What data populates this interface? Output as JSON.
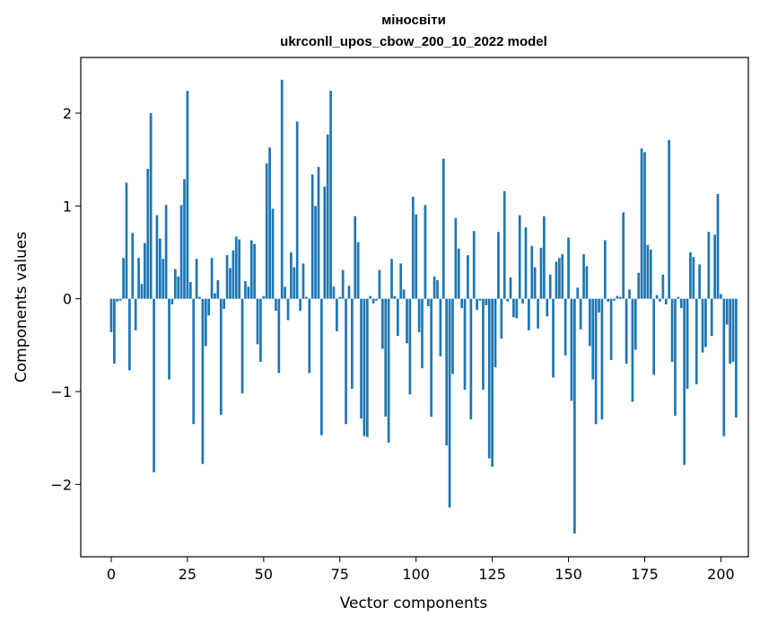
{
  "chart_data": {
    "type": "bar",
    "title": "міносвіти",
    "subtitle": "ukrconll_upos_cbow_200_10_2022 model",
    "xlabel": "Vector components",
    "ylabel": "Components values",
    "xlim": [
      -10,
      209
    ],
    "ylim": [
      -2.78,
      2.6
    ],
    "xticks": [
      0,
      25,
      50,
      75,
      100,
      125,
      150,
      175,
      200
    ],
    "xtick_labels": [
      "0",
      "25",
      "50",
      "75",
      "100",
      "125",
      "150",
      "175",
      "200"
    ],
    "yticks": [
      -2,
      -1,
      0,
      1,
      2
    ],
    "ytick_labels": [
      "−2",
      "−1",
      "0",
      "1",
      "2"
    ],
    "grid": false,
    "bar_color": "#1f77b4",
    "values": [
      -0.36,
      -0.7,
      -0.03,
      -0.02,
      0.44,
      1.25,
      -0.77,
      0.71,
      -0.34,
      0.44,
      0.16,
      0.6,
      1.4,
      2.0,
      -1.87,
      0.9,
      0.65,
      0.43,
      1.01,
      -0.87,
      -0.06,
      0.32,
      0.24,
      1.01,
      1.29,
      2.24,
      0.18,
      -1.35,
      0.43,
      0.02,
      -1.78,
      -0.51,
      -0.18,
      0.44,
      0.06,
      0.2,
      -1.25,
      -0.11,
      0.47,
      0.33,
      0.52,
      0.67,
      0.64,
      -1.02,
      0.19,
      0.13,
      0.63,
      0.59,
      -0.49,
      -0.68,
      0.03,
      1.46,
      1.63,
      0.97,
      -0.13,
      -0.8,
      2.36,
      0.13,
      -0.23,
      0.5,
      0.34,
      1.91,
      -0.13,
      0.38,
      0.02,
      -0.8,
      1.34,
      1.0,
      1.42,
      -1.47,
      1.21,
      1.77,
      2.24,
      0.13,
      -0.35,
      0.02,
      0.31,
      -1.35,
      0.14,
      -0.97,
      0.89,
      0.61,
      -1.29,
      -1.48,
      -1.49,
      0.03,
      -0.05,
      -0.02,
      0.31,
      -0.54,
      -1.27,
      -1.55,
      0.43,
      0.03,
      -0.4,
      0.38,
      0.1,
      -0.48,
      -1.03,
      1.1,
      0.91,
      -0.36,
      -0.75,
      1.01,
      -0.08,
      -1.27,
      0.24,
      0.2,
      -0.62,
      1.51,
      -1.58,
      -2.25,
      -0.81,
      0.87,
      0.54,
      -0.1,
      -0.98,
      0.47,
      -1.3,
      0.73,
      -0.12,
      -0.02,
      -0.98,
      -0.07,
      -1.72,
      -1.81,
      -0.74,
      0.72,
      -0.43,
      1.16,
      -0.03,
      0.23,
      -0.2,
      -0.21,
      0.9,
      -0.05,
      0.77,
      -0.34,
      0.57,
      0.34,
      -0.32,
      0.55,
      0.89,
      -0.19,
      0.26,
      -0.85,
      0.4,
      0.44,
      0.48,
      -0.61,
      0.66,
      -1.1,
      -2.53,
      0.12,
      -0.33,
      0.48,
      0.35,
      -0.51,
      -0.87,
      -1.35,
      -0.15,
      -1.3,
      0.63,
      -0.03,
      -0.66,
      -0.02,
      0.03,
      0.02,
      0.93,
      -0.7,
      0.1,
      -1.11,
      -0.55,
      0.28,
      1.62,
      1.58,
      0.58,
      0.53,
      -0.82,
      0.04,
      -0.03,
      0.26,
      -0.06,
      1.71,
      -0.68,
      -1.26,
      0.02,
      -0.1,
      -1.79,
      -0.97,
      0.5,
      0.45,
      -0.92,
      0.37,
      -0.58,
      -0.52,
      0.72,
      -0.4,
      0.69,
      1.13,
      0.05,
      -1.48,
      -0.28,
      -0.7,
      -0.68,
      -1.28
    ]
  }
}
